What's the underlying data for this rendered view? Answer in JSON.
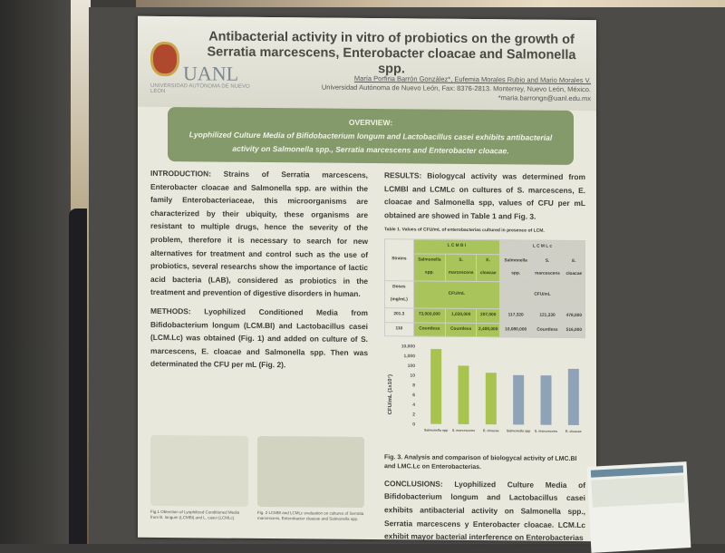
{
  "poster": {
    "logo_text": "UANL",
    "logo_subtext": "UNIVERSIDAD AUTÓNOMA DE NUEVO LEÓN",
    "title": "Antibacterial activity in vitro of probiotics on the growth of Serratia marcescens, Enterobacter cloacae and Salmonella spp.",
    "authors": "María Porfiria Barrón González*, Eufemia Morales Rubio and Mario Morales V.",
    "affiliation": "Universidad Autónoma de Nuevo León, Fax: 8376-2813. Monterrey, Nuevo León, México.",
    "email": "*maria.barrongn@uanl.edu.mx",
    "overview_heading": "OVERVIEW:",
    "overview_text": "Lyophilized Culture Media of Bifidobacterium longum and Lactobacillus casei exhibits antibacterial activity on Salmonella spp., Serratia marcescens and Enterobacter cloacae.",
    "introduction": "INTRODUCTION: Strains of Serratia marcescens, Enterobacter cloacae and Salmonella spp. are within the family Enterobacteriaceae, this microorganisms are characterized by their ubiquity, these organisms are resistant to multiple drugs, hence the severity of the problem, therefore it is necessary to search for new alternatives for treatment and control such as the use of probiotics, several researchs show the importance of lactic acid bacteria (LAB), considered as probiotics in the treatment and prevention of digestive disorders in human.",
    "methods": "METHODS: Lyophilized Conditioned Media from Bifidobacterium longum (LCM.Bl) and Lactobacillus casei (LCM.Lc) was obtained (Fig. 1) and added on culture of S. marcescens, E. cloacae and Salmonella spp. Then was determinated the CFU per mL (Fig. 2).",
    "fig1_caption": "Fig.1 Obtention of Lyophilized Conditioned Media from B. longum (LCMBl) and L. casei (LCMLc).",
    "fig2_caption": "Fig. 2 LCMBl and LCMLc evaluation on cultures of Serratia marcescens, Enterobacter cloacae and Salmonella spp.",
    "results": "RESULTS: Biologycal activity was determined from LCMBl and LCMLc on cultures of S. marcescens, E. cloacae and Salmonella spp, values of CFU per mL obtained are showed in Table 1 and Fig. 3.",
    "table_caption": "Table 1. Values of CFU/mL of enterobacterias cultured in presence of LCM.",
    "table": {
      "groups": [
        "L C M B l",
        "L C M L c"
      ],
      "row_header": "Strains",
      "dose_header": "Doses (mg/mL)",
      "organisms": [
        "Salmonella spp.",
        "S. marcescens",
        "E. cloacae",
        "Salmonella spp.",
        "S. marcescens",
        "E. cloacae"
      ],
      "unit": "CFU/mL",
      "rows": [
        {
          "dose": "201.3",
          "values": [
            "73,000,000",
            "1,030,000",
            "207,000",
            "117,320",
            "121,330",
            "478,000"
          ]
        },
        {
          "dose": "110",
          "values": [
            "Countless",
            "Countless",
            "2,400,000",
            "10,080,000",
            "Countless",
            "516,000"
          ]
        }
      ]
    },
    "fig3_caption": "Fig. 3. Analysis and comparison of biologycal activity of LMC.Bl and LMC.Lc on Enterobacterias.",
    "conclusions": "CONCLUSIONS: Lyophilized Culture Media of Bifidobacterium longum and Lactobacillus casei exhibits antibacterial activity on Salmonella spp., Serratia marcescens y Enterobacter cloacae. LCM.Lc exhibit mayor bacterial interference on Enterobacterias"
  },
  "chart_data": {
    "type": "bar",
    "ylabel": "CFU/mL (1x10⁷)",
    "yticks": [
      "10,000",
      "1,000",
      "100",
      "10",
      "8",
      "6",
      "4",
      "2",
      "0"
    ],
    "categories": [
      "Salmonella spp",
      "S. marcescens",
      "E. cloacae",
      "Salmonella spp",
      "S. marcescens",
      "E. cloacae"
    ],
    "values": [
      5000,
      100,
      20,
      12,
      12,
      60
    ],
    "colors": [
      "#a8c44e",
      "#a8c44e",
      "#a8c44e",
      "#8fa3b8",
      "#8fa3b8",
      "#8fa3b8"
    ]
  }
}
